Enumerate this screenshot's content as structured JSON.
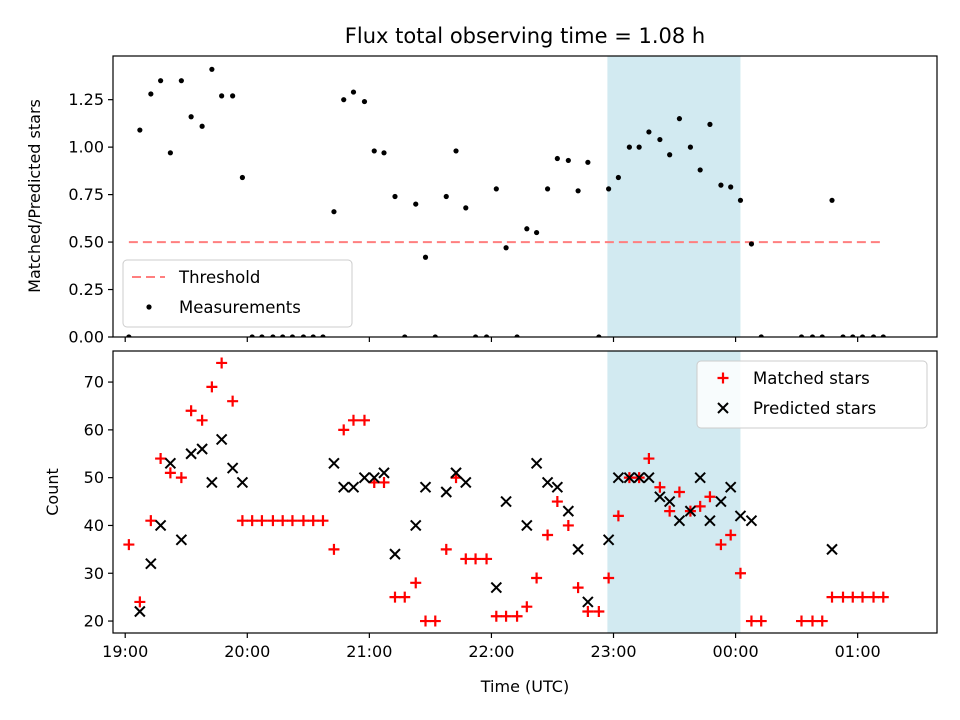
{
  "title": "Flux total observing time = 1.08 h",
  "colors": {
    "highlight": "#add8e6",
    "threshold": "#ff7f7f",
    "measurement": "#000000",
    "matched": "#ff0000",
    "predicted": "#000000"
  },
  "chart_data": [
    {
      "type": "scatter",
      "ylabel": "Matched/Predicted stars",
      "xlabel": "",
      "xlim": [
        18.9,
        25.65
      ],
      "ylim": [
        0,
        1.48
      ],
      "x_ticks": [
        {
          "label": "19:00",
          "value": 19.0
        },
        {
          "label": "20:00",
          "value": 20.0
        },
        {
          "label": "21:00",
          "value": 21.0
        },
        {
          "label": "22:00",
          "value": 22.0
        },
        {
          "label": "23:00",
          "value": 23.0
        },
        {
          "label": "00:00",
          "value": 24.0
        },
        {
          "label": "01:00",
          "value": 25.0
        }
      ],
      "y_ticks": [
        {
          "label": "0.00",
          "value": 0
        },
        {
          "label": "0.25",
          "value": 0.25
        },
        {
          "label": "0.50",
          "value": 0.5
        },
        {
          "label": "0.75",
          "value": 0.75
        },
        {
          "label": "1.00",
          "value": 1.0
        },
        {
          "label": "1.25",
          "value": 1.25
        }
      ],
      "shaded_region": [
        22.95,
        24.04
      ],
      "legend_position": "lower-left",
      "series": [
        {
          "name": "Threshold",
          "kind": "dashed-line",
          "x": [
            19.03,
            25.22
          ],
          "y": [
            0.5,
            0.5
          ]
        },
        {
          "name": "Measurements",
          "kind": "dot",
          "points": [
            [
              19.03,
              0
            ],
            [
              19.12,
              1.09
            ],
            [
              19.21,
              1.28
            ],
            [
              19.29,
              1.35
            ],
            [
              19.37,
              0.97
            ],
            [
              19.46,
              1.35
            ],
            [
              19.54,
              1.16
            ],
            [
              19.63,
              1.11
            ],
            [
              19.71,
              1.41
            ],
            [
              19.79,
              1.27
            ],
            [
              19.88,
              1.27
            ],
            [
              19.96,
              0.84
            ],
            [
              20.04,
              0
            ],
            [
              20.12,
              0
            ],
            [
              20.21,
              0
            ],
            [
              20.29,
              0
            ],
            [
              20.37,
              0
            ],
            [
              20.46,
              0
            ],
            [
              20.54,
              0
            ],
            [
              20.62,
              0
            ],
            [
              20.71,
              0.66
            ],
            [
              20.79,
              1.25
            ],
            [
              20.87,
              1.29
            ],
            [
              20.96,
              1.24
            ],
            [
              21.04,
              0.98
            ],
            [
              21.12,
              0.97
            ],
            [
              21.21,
              0.74
            ],
            [
              21.29,
              0
            ],
            [
              21.38,
              0.7
            ],
            [
              21.46,
              0.42
            ],
            [
              21.54,
              0
            ],
            [
              21.63,
              0.74
            ],
            [
              21.71,
              0.98
            ],
            [
              21.79,
              0.68
            ],
            [
              21.87,
              0
            ],
            [
              21.96,
              0
            ],
            [
              22.04,
              0.78
            ],
            [
              22.12,
              0.47
            ],
            [
              22.21,
              0
            ],
            [
              22.29,
              0.57
            ],
            [
              22.37,
              0.55
            ],
            [
              22.46,
              0.78
            ],
            [
              22.54,
              0.94
            ],
            [
              22.63,
              0.93
            ],
            [
              22.71,
              0.77
            ],
            [
              22.79,
              0.92
            ],
            [
              22.88,
              0
            ],
            [
              22.96,
              0.78
            ],
            [
              23.04,
              0.84
            ],
            [
              23.13,
              1.0
            ],
            [
              23.21,
              1.0
            ],
            [
              23.29,
              1.08
            ],
            [
              23.38,
              1.04
            ],
            [
              23.46,
              0.96
            ],
            [
              23.54,
              1.15
            ],
            [
              23.63,
              1.0
            ],
            [
              23.71,
              0.88
            ],
            [
              23.79,
              1.12
            ],
            [
              23.88,
              0.8
            ],
            [
              23.96,
              0.79
            ],
            [
              24.04,
              0.72
            ],
            [
              24.13,
              0.49
            ],
            [
              24.21,
              0
            ],
            [
              24.54,
              0
            ],
            [
              24.63,
              0
            ],
            [
              24.71,
              0
            ],
            [
              24.79,
              0.72
            ],
            [
              24.88,
              0
            ],
            [
              24.96,
              0
            ],
            [
              25.04,
              0
            ],
            [
              25.13,
              0
            ],
            [
              25.21,
              0
            ]
          ]
        }
      ]
    },
    {
      "type": "scatter",
      "ylabel": "Count",
      "xlabel": "Time (UTC)",
      "xlim": [
        18.9,
        25.65
      ],
      "ylim": [
        17.5,
        76.5
      ],
      "x_ticks": [
        {
          "label": "19:00",
          "value": 19.0
        },
        {
          "label": "20:00",
          "value": 20.0
        },
        {
          "label": "21:00",
          "value": 21.0
        },
        {
          "label": "22:00",
          "value": 22.0
        },
        {
          "label": "23:00",
          "value": 23.0
        },
        {
          "label": "00:00",
          "value": 24.0
        },
        {
          "label": "01:00",
          "value": 25.0
        }
      ],
      "y_ticks": [
        {
          "label": "20",
          "value": 20
        },
        {
          "label": "30",
          "value": 30
        },
        {
          "label": "40",
          "value": 40
        },
        {
          "label": "50",
          "value": 50
        },
        {
          "label": "60",
          "value": 60
        },
        {
          "label": "70",
          "value": 70
        }
      ],
      "shaded_region": [
        22.95,
        24.04
      ],
      "legend_position": "upper-right",
      "series": [
        {
          "name": "Matched stars",
          "kind": "plus",
          "points": [
            [
              19.03,
              36
            ],
            [
              19.12,
              24
            ],
            [
              19.21,
              41
            ],
            [
              19.29,
              54
            ],
            [
              19.37,
              51
            ],
            [
              19.46,
              50
            ],
            [
              19.54,
              64
            ],
            [
              19.63,
              62
            ],
            [
              19.71,
              69
            ],
            [
              19.79,
              74
            ],
            [
              19.88,
              66
            ],
            [
              19.96,
              41
            ],
            [
              20.04,
              41
            ],
            [
              20.12,
              41
            ],
            [
              20.21,
              41
            ],
            [
              20.29,
              41
            ],
            [
              20.37,
              41
            ],
            [
              20.46,
              41
            ],
            [
              20.54,
              41
            ],
            [
              20.62,
              41
            ],
            [
              20.71,
              35
            ],
            [
              20.79,
              60
            ],
            [
              20.87,
              62
            ],
            [
              20.96,
              62
            ],
            [
              21.04,
              49
            ],
            [
              21.12,
              49
            ],
            [
              21.21,
              25
            ],
            [
              21.29,
              25
            ],
            [
              21.38,
              28
            ],
            [
              21.46,
              20
            ],
            [
              21.54,
              20
            ],
            [
              21.63,
              35
            ],
            [
              21.71,
              50
            ],
            [
              21.79,
              33
            ],
            [
              21.87,
              33
            ],
            [
              21.96,
              33
            ],
            [
              22.04,
              21
            ],
            [
              22.12,
              21
            ],
            [
              22.21,
              21
            ],
            [
              22.29,
              23
            ],
            [
              22.37,
              29
            ],
            [
              22.46,
              38
            ],
            [
              22.54,
              45
            ],
            [
              22.63,
              40
            ],
            [
              22.71,
              27
            ],
            [
              22.79,
              22
            ],
            [
              22.88,
              22
            ],
            [
              22.96,
              29
            ],
            [
              23.04,
              42
            ],
            [
              23.13,
              50
            ],
            [
              23.21,
              50
            ],
            [
              23.29,
              54
            ],
            [
              23.38,
              48
            ],
            [
              23.46,
              43
            ],
            [
              23.54,
              47
            ],
            [
              23.63,
              43
            ],
            [
              23.71,
              44
            ],
            [
              23.79,
              46
            ],
            [
              23.88,
              36
            ],
            [
              23.96,
              38
            ],
            [
              24.04,
              30
            ],
            [
              24.13,
              20
            ],
            [
              24.21,
              20
            ],
            [
              24.54,
              20
            ],
            [
              24.63,
              20
            ],
            [
              24.71,
              20
            ],
            [
              24.79,
              25
            ],
            [
              24.88,
              25
            ],
            [
              24.96,
              25
            ],
            [
              25.04,
              25
            ],
            [
              25.13,
              25
            ],
            [
              25.21,
              25
            ]
          ]
        },
        {
          "name": "Predicted stars",
          "kind": "x",
          "points": [
            [
              19.12,
              22
            ],
            [
              19.21,
              32
            ],
            [
              19.29,
              40
            ],
            [
              19.37,
              53
            ],
            [
              19.46,
              37
            ],
            [
              19.54,
              55
            ],
            [
              19.63,
              56
            ],
            [
              19.71,
              49
            ],
            [
              19.79,
              58
            ],
            [
              19.88,
              52
            ],
            [
              19.96,
              49
            ],
            [
              20.71,
              53
            ],
            [
              20.79,
              48
            ],
            [
              20.87,
              48
            ],
            [
              20.96,
              50
            ],
            [
              21.04,
              50
            ],
            [
              21.12,
              51
            ],
            [
              21.21,
              34
            ],
            [
              21.38,
              40
            ],
            [
              21.46,
              48
            ],
            [
              21.63,
              47
            ],
            [
              21.71,
              51
            ],
            [
              21.79,
              49
            ],
            [
              22.04,
              27
            ],
            [
              22.12,
              45
            ],
            [
              22.29,
              40
            ],
            [
              22.37,
              53
            ],
            [
              22.46,
              49
            ],
            [
              22.54,
              48
            ],
            [
              22.63,
              43
            ],
            [
              22.71,
              35
            ],
            [
              22.79,
              24
            ],
            [
              22.96,
              37
            ],
            [
              23.04,
              50
            ],
            [
              23.13,
              50
            ],
            [
              23.21,
              50
            ],
            [
              23.29,
              50
            ],
            [
              23.38,
              46
            ],
            [
              23.46,
              45
            ],
            [
              23.54,
              41
            ],
            [
              23.63,
              43
            ],
            [
              23.71,
              50
            ],
            [
              23.79,
              41
            ],
            [
              23.88,
              45
            ],
            [
              23.96,
              48
            ],
            [
              24.04,
              42
            ],
            [
              24.13,
              41
            ],
            [
              24.79,
              35
            ]
          ]
        }
      ]
    }
  ]
}
